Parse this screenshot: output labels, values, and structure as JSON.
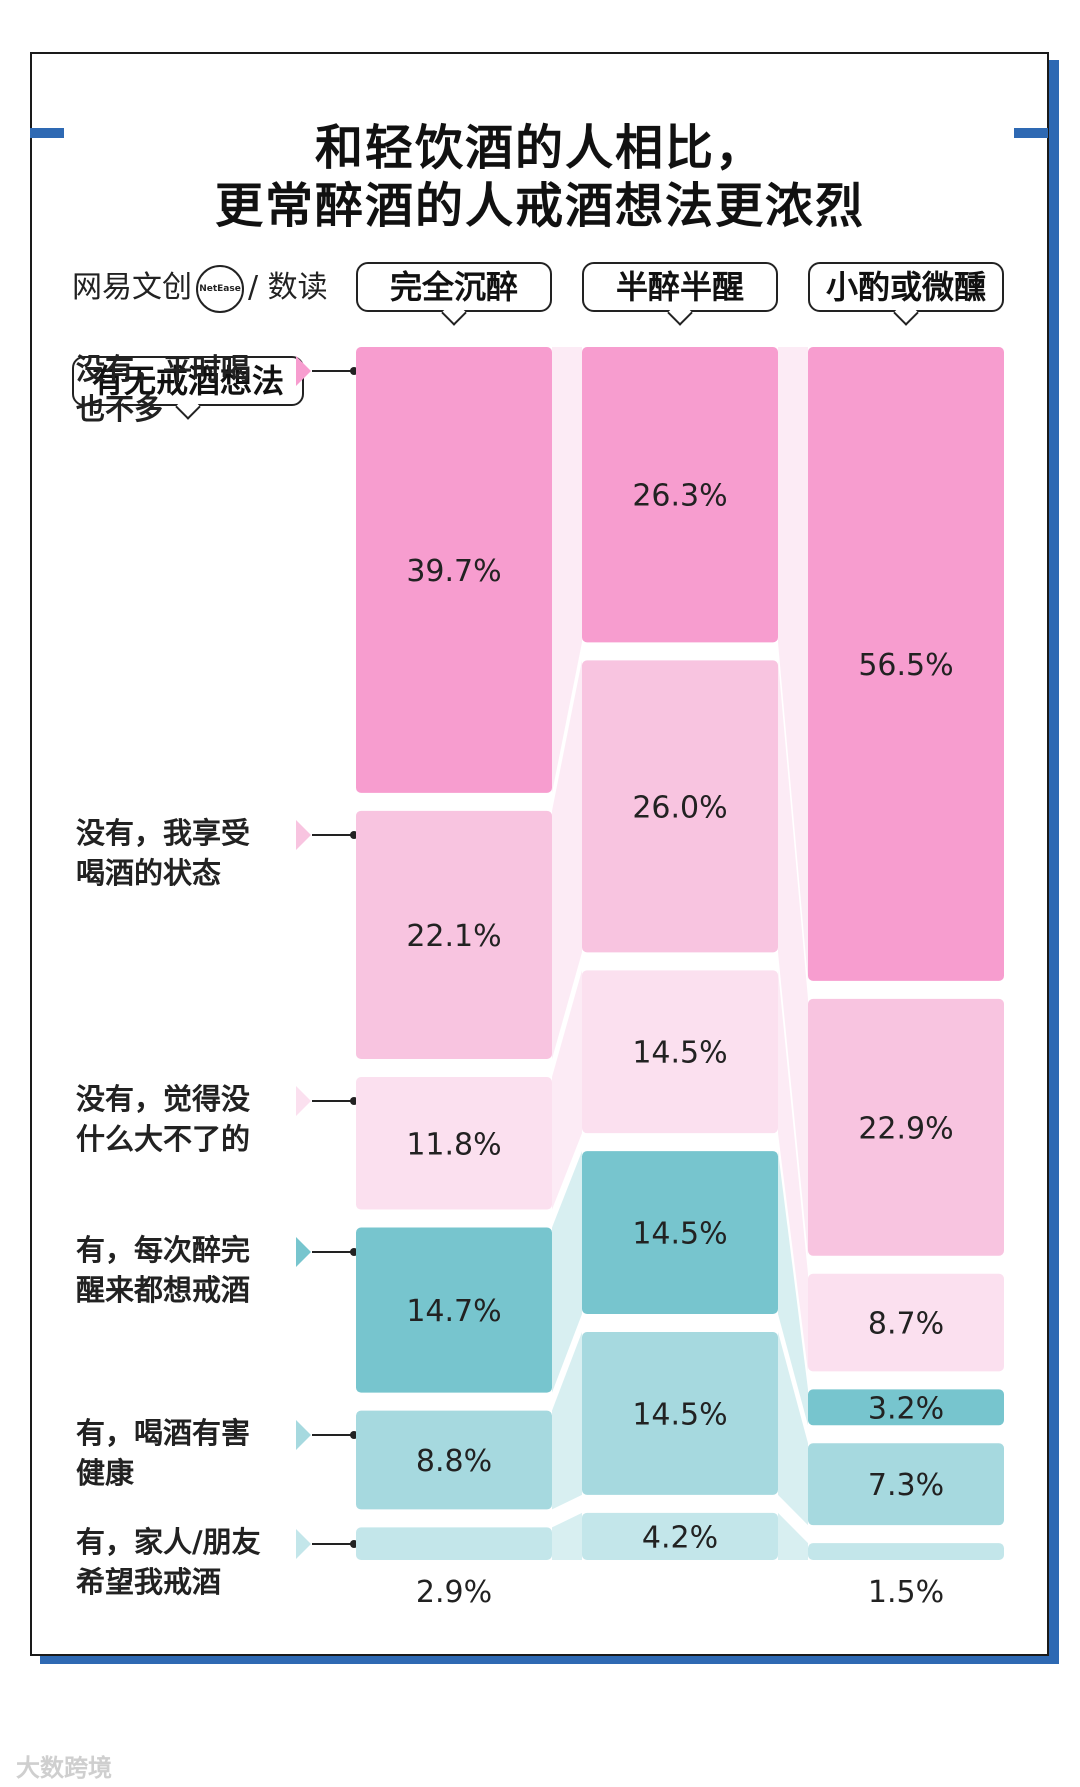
{
  "title_lines": [
    "和轻饮酒的人相比，",
    "更常醉酒的人戒酒想法更浓烈"
  ],
  "brand": {
    "left": "网易文创",
    "badge": "NetEase",
    "right": "/ 数读"
  },
  "row_header": "有无戒酒想法",
  "watermark": "大数跨境",
  "colors": {
    "pink_dark": "#f79dcf",
    "pink_mid": "#f8c4e0",
    "pink_light": "#fbe0ef",
    "teal_dark": "#77c5ce",
    "teal_mid": "#a6d9df",
    "teal_light": "#c3e6ea",
    "brand_blue": "#2e69b3"
  },
  "chart_data": {
    "type": "bar",
    "stacked": true,
    "categories": [
      "完全沉醉",
      "半醉半醒",
      "小酌或微醺"
    ],
    "series": [
      {
        "name": "没有，平时喝也不多",
        "values": [
          39.7,
          26.3,
          56.5
        ],
        "color": "#f79dcf"
      },
      {
        "name": "没有，我享受喝酒的状态",
        "values": [
          22.1,
          26.0,
          22.9
        ],
        "color": "#f8c4e0"
      },
      {
        "name": "没有，觉得没什么大不了的",
        "values": [
          11.8,
          14.5,
          8.7
        ],
        "color": "#fbe0ef"
      },
      {
        "name": "有，每次醉完醒来都想戒酒",
        "values": [
          14.7,
          14.5,
          3.2
        ],
        "color": "#77c5ce"
      },
      {
        "name": "有，喝酒有害健康",
        "values": [
          8.8,
          14.5,
          7.3
        ],
        "color": "#a6d9df"
      },
      {
        "name": "有，家人/朋友希望我戒酒",
        "values": [
          2.9,
          4.2,
          1.5
        ],
        "color": "#c3e6ea"
      }
    ],
    "labels": [
      [
        "39.7%",
        "26.3%",
        "56.5%"
      ],
      [
        "22.1%",
        "26.0%",
        "22.9%"
      ],
      [
        "11.8%",
        "14.5%",
        "8.7%"
      ],
      [
        "14.7%",
        "14.5%",
        "3.2%"
      ],
      [
        "8.8%",
        "14.5%",
        "7.3%"
      ],
      [
        "2.9%",
        "4.2%",
        "1.5%"
      ]
    ],
    "row_labels": [
      [
        "没有，平时喝",
        "也不多"
      ],
      [
        "没有，我享受",
        "喝酒的状态"
      ],
      [
        "没有，觉得没",
        "什么大不了的"
      ],
      [
        "有，每次醉完",
        "醒来都想戒酒"
      ],
      [
        "有，喝酒有害",
        "健康"
      ],
      [
        "有，家人/朋友",
        "希望我戒酒"
      ]
    ]
  }
}
